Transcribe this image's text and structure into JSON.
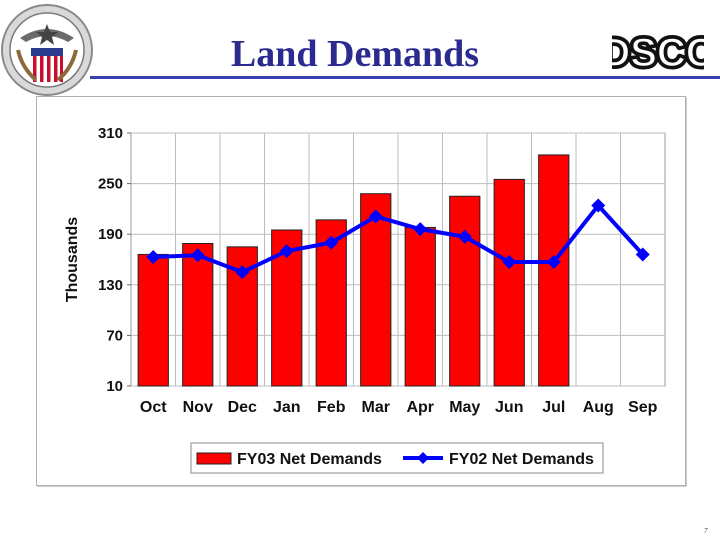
{
  "slide": {
    "title": "Land Demands",
    "logo_text": "DSCC",
    "page_number": "7"
  },
  "chart_data": {
    "type": "bar",
    "categories": [
      "Oct",
      "Nov",
      "Dec",
      "Jan",
      "Feb",
      "Mar",
      "Apr",
      "May",
      "Jun",
      "Jul",
      "Aug",
      "Sep"
    ],
    "series": [
      {
        "name": "FY03 Net Demands",
        "kind": "bar",
        "color": "#ff0000",
        "values": [
          166,
          179,
          175,
          195,
          207,
          238,
          198,
          235,
          255,
          284,
          null,
          null
        ]
      },
      {
        "name": "FY02 Net Demands",
        "kind": "line",
        "color": "#0000ff",
        "values": [
          163,
          165,
          145,
          170,
          180,
          211,
          196,
          187,
          157,
          157,
          224,
          166
        ]
      }
    ],
    "title": "",
    "xlabel": "",
    "ylabel": "Thousands",
    "ylim": [
      10,
      310
    ],
    "yticks": [
      10,
      70,
      130,
      190,
      250,
      310
    ],
    "grid": true,
    "legend_position": "bottom"
  }
}
